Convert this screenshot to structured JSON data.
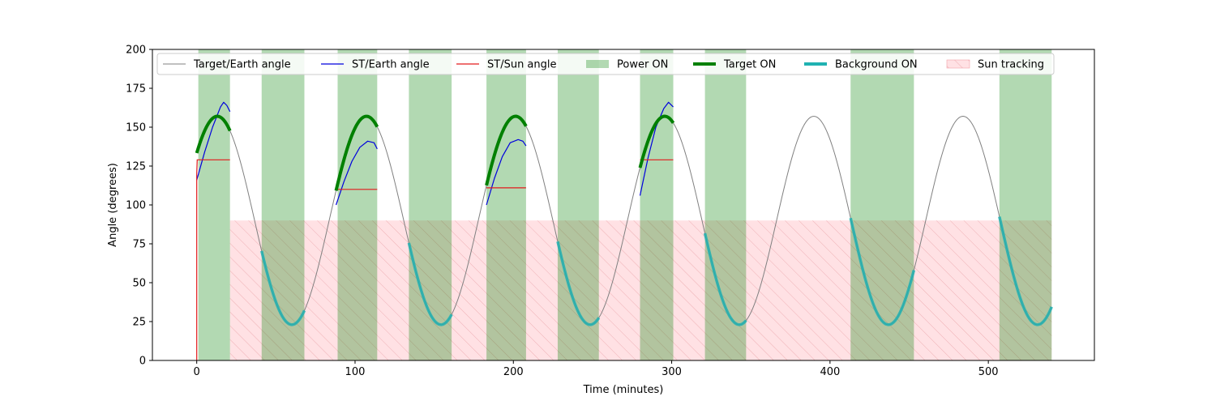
{
  "chart_data": {
    "type": "line",
    "xlabel": "Time (minutes)",
    "ylabel": "Angle (degrees)",
    "xlim": [
      -28,
      567
    ],
    "ylim": [
      0,
      200
    ],
    "x_ticks": [
      0,
      100,
      200,
      300,
      400,
      500
    ],
    "y_ticks": [
      0,
      25,
      50,
      75,
      100,
      125,
      150,
      175,
      200
    ],
    "grid": false,
    "legend": {
      "placement": "top",
      "entries": [
        "Target/Earth angle",
        "ST/Earth angle",
        "ST/Sun angle",
        "Power ON",
        "Target ON",
        "Background ON",
        "Sun tracking"
      ]
    },
    "colors": {
      "target_earth": "#808080",
      "st_earth": "#0000dd",
      "st_sun": "#e31a1c",
      "power_on": "#008000",
      "target_on": "#008000",
      "background_on": "#20b2b2",
      "sun_tracking": "#ff6b7a"
    },
    "target_earth_model": {
      "period_minutes": 94.2,
      "mean_deg": 90,
      "amplitude_deg": 67,
      "peak_time_minutes": 13,
      "t_start": 0,
      "t_end": 540
    },
    "power_on_intervals": [
      [
        1,
        21
      ],
      [
        41,
        68
      ],
      [
        89,
        114
      ],
      [
        134,
        161
      ],
      [
        183,
        208
      ],
      [
        228,
        254
      ],
      [
        280,
        301
      ],
      [
        321,
        347
      ],
      [
        413,
        453
      ],
      [
        507,
        540
      ]
    ],
    "target_on_intervals": [
      [
        0,
        21
      ],
      [
        88,
        114
      ],
      [
        183,
        208
      ],
      [
        280,
        301
      ]
    ],
    "background_on_intervals": [
      [
        41,
        68
      ],
      [
        134,
        161
      ],
      [
        228,
        254
      ],
      [
        321,
        347
      ],
      [
        413,
        453
      ],
      [
        507,
        540
      ]
    ],
    "sun_tracking": {
      "from": 21,
      "to": 540,
      "angle_deg": 90
    },
    "st_earth_segments": [
      {
        "x": [
          0,
          5,
          10,
          15,
          17,
          19,
          21
        ],
        "y": [
          116,
          134,
          150,
          163,
          166,
          164,
          160
        ]
      },
      {
        "x": [
          88,
          93,
          98,
          103,
          108,
          112,
          114
        ],
        "y": [
          100,
          115,
          128,
          137,
          141,
          140,
          136
        ]
      },
      {
        "x": [
          183,
          188,
          193,
          198,
          203,
          206,
          208
        ],
        "y": [
          100,
          117,
          131,
          140,
          142,
          141,
          138
        ]
      },
      {
        "x": [
          280,
          285,
          290,
          295,
          298,
          301
        ],
        "y": [
          106,
          130,
          150,
          162,
          166,
          163
        ]
      }
    ],
    "st_sun_segments": [
      {
        "x": [
          0,
          0,
          0.3,
          21
        ],
        "y": [
          0,
          120,
          129,
          129
        ]
      },
      {
        "x": [
          88,
          114
        ],
        "y": [
          110,
          110
        ]
      },
      {
        "x": [
          183,
          208
        ],
        "y": [
          111,
          111
        ]
      },
      {
        "x": [
          280,
          301
        ],
        "y": [
          129,
          129
        ]
      }
    ]
  }
}
